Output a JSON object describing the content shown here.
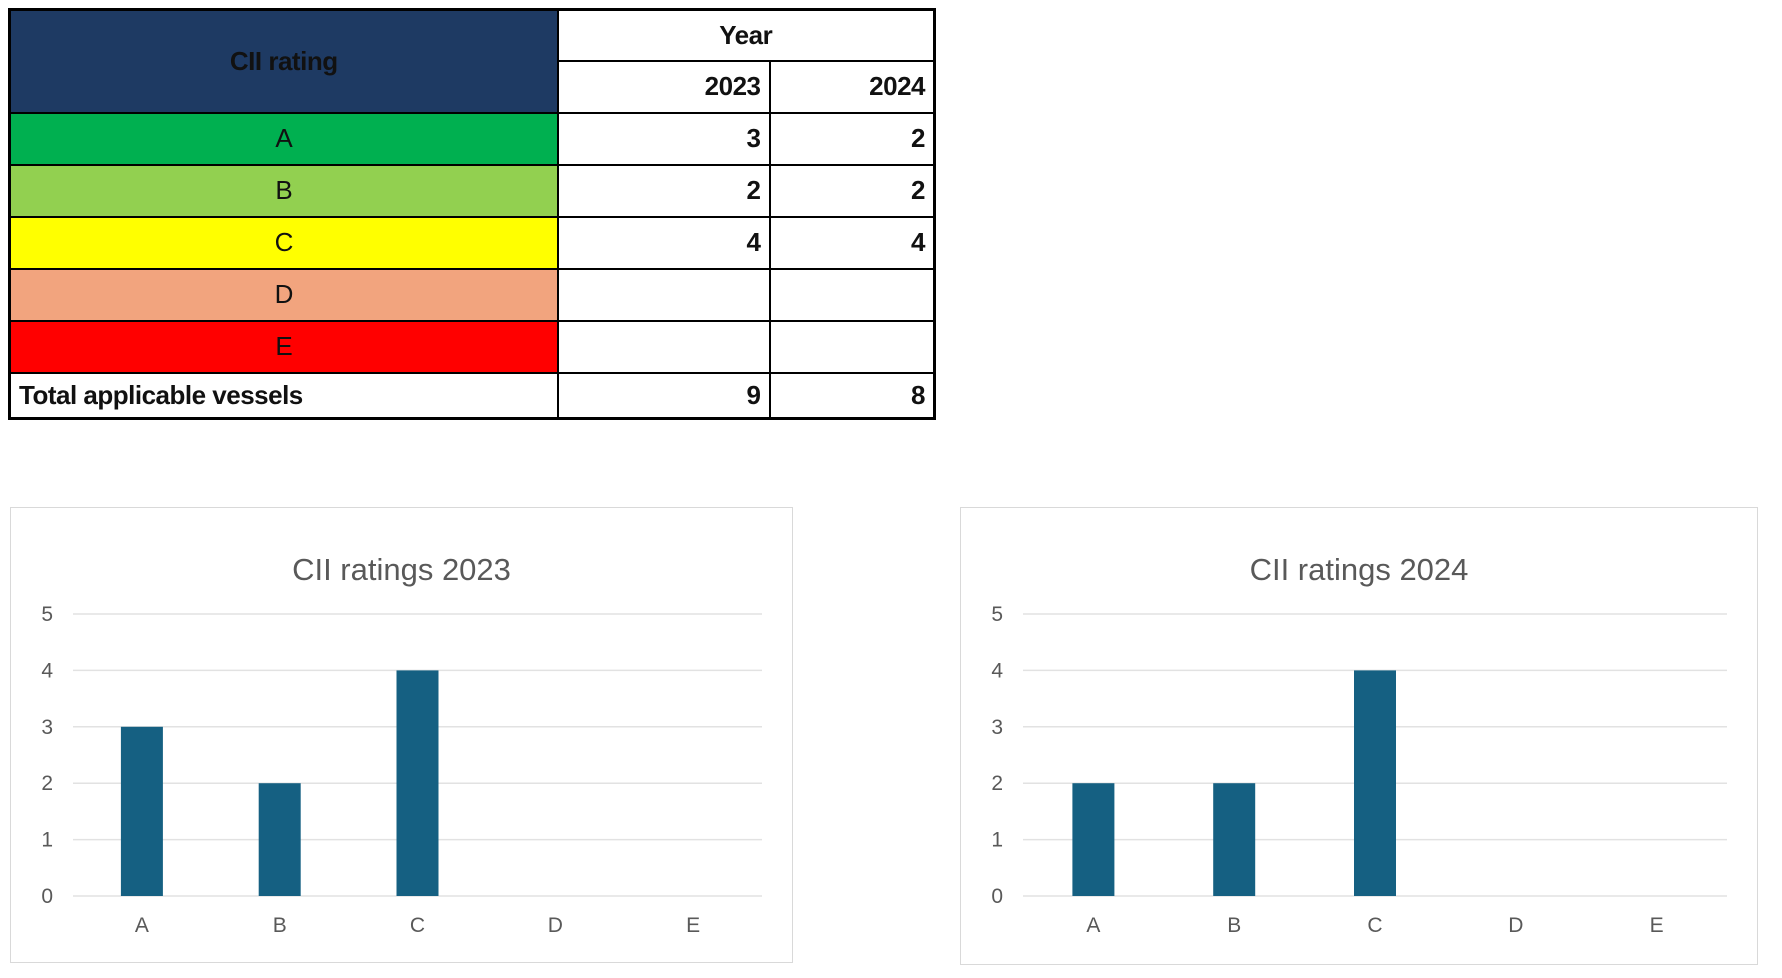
{
  "table": {
    "header": {
      "rating_label": "CII rating",
      "year_label": "Year",
      "col_2023": "2023",
      "col_2024": "2024"
    },
    "rows": [
      {
        "rating": "A",
        "color": "#00B050",
        "y2023": "3",
        "y2024": "2"
      },
      {
        "rating": "B",
        "color": "#92D050",
        "y2023": "2",
        "y2024": "2"
      },
      {
        "rating": "C",
        "color": "#FFFF00",
        "y2023": "4",
        "y2024": "4"
      },
      {
        "rating": "D",
        "color": "#F2A47E",
        "y2023": "",
        "y2024": ""
      },
      {
        "rating": "E",
        "color": "#FF0000",
        "y2023": "",
        "y2024": ""
      }
    ],
    "total": {
      "label": "Total applicable vessels",
      "y2023": "9",
      "y2024": "8"
    }
  },
  "colors": {
    "header_bg": "#1E3A63",
    "header_text": "#FFFFFF",
    "bar": "#156082",
    "axis_text": "#595959",
    "title_text": "#595959",
    "gridline": "#E2E2E2",
    "chart_border": "#D9D9D9",
    "table_border": "#000000"
  },
  "chart_data": [
    {
      "type": "bar",
      "title": "CII ratings 2023",
      "categories": [
        "A",
        "B",
        "C",
        "D",
        "E"
      ],
      "values": [
        3,
        2,
        4,
        0,
        0
      ],
      "xlabel": "",
      "ylabel": "",
      "ylim": [
        0,
        5
      ],
      "yticks": [
        0,
        1,
        2,
        3,
        4,
        5
      ],
      "grid": true,
      "legend": "none"
    },
    {
      "type": "bar",
      "title": "CII ratings 2024",
      "categories": [
        "A",
        "B",
        "C",
        "D",
        "E"
      ],
      "values": [
        2,
        2,
        4,
        0,
        0
      ],
      "xlabel": "",
      "ylabel": "",
      "ylim": [
        0,
        5
      ],
      "yticks": [
        0,
        1,
        2,
        3,
        4,
        5
      ],
      "grid": true,
      "legend": "none"
    }
  ]
}
